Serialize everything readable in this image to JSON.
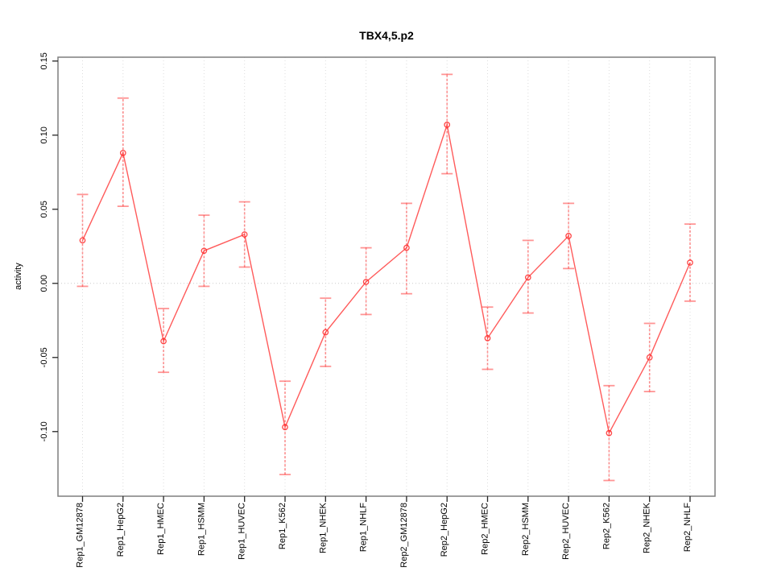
{
  "window": {
    "background": "#ffffff"
  },
  "chart_data": {
    "type": "line",
    "title": "TBX4,5.p2",
    "xlabel": "",
    "ylabel": "activity",
    "legend": "none",
    "grid": "vertical dotted gridline at each category; dotted horizontal line at y=0",
    "marker": "open-circle",
    "categories": [
      "Rep1_GM12878",
      "Rep1_HepG2",
      "Rep1_HMEC",
      "Rep1_HSMM",
      "Rep1_HUVEC",
      "Rep1_K562",
      "Rep1_NHEK",
      "Rep1_NHLF",
      "Rep2_GM12878",
      "Rep2_HepG2",
      "Rep2_HMEC",
      "Rep2_HSMM",
      "Rep2_HUVEC",
      "Rep2_K562",
      "Rep2_NHEK",
      "Rep2_NHLF"
    ],
    "series": [
      {
        "name": "activity",
        "values": [
          0.029,
          0.088,
          -0.039,
          0.022,
          0.033,
          -0.097,
          -0.033,
          0.001,
          0.024,
          0.107,
          -0.037,
          0.004,
          0.032,
          -0.101,
          -0.05,
          0.014
        ],
        "err_low": [
          -0.002,
          0.052,
          -0.06,
          -0.002,
          0.011,
          -0.129,
          -0.056,
          -0.021,
          -0.007,
          0.074,
          -0.058,
          -0.02,
          0.01,
          -0.133,
          -0.073,
          -0.012
        ],
        "err_high": [
          0.06,
          0.125,
          -0.017,
          0.046,
          0.055,
          -0.066,
          -0.01,
          0.024,
          0.054,
          0.141,
          -0.016,
          0.029,
          0.054,
          -0.069,
          -0.027,
          0.04
        ]
      }
    ],
    "ytick_labels": [
      "0.15",
      "0.10",
      "0.05",
      "0.00",
      "-0.05",
      "-0.10"
    ],
    "ylim": [
      -0.1436,
      0.1526
    ],
    "zero_line": true,
    "colors": {
      "line": "rgba(255,45,45,0.78)",
      "error_bar": "rgba(255,0,0,0.42)",
      "point_stroke": "rgba(255,45,45,0.88)",
      "gridline": "#dcdcdc",
      "zero_line": "#cccccc",
      "box": "#7f7f7f",
      "tick": "#262626",
      "text": "#000000"
    }
  }
}
